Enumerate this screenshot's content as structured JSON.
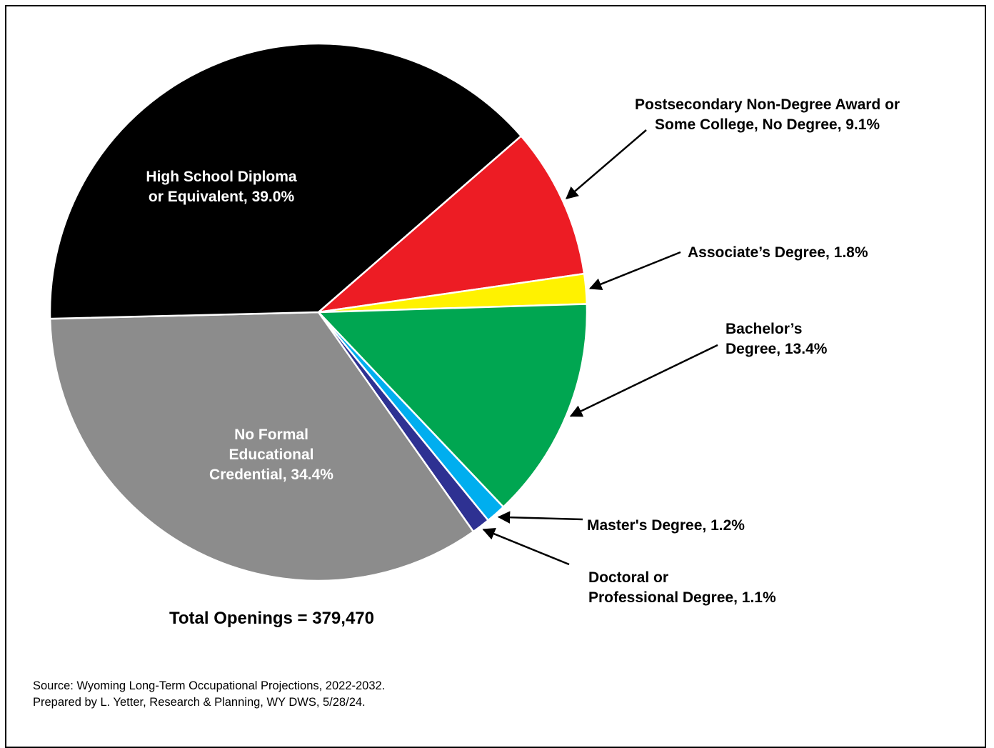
{
  "chart_data": {
    "type": "pie",
    "total_label": "Total Openings = 379,470",
    "slices": [
      {
        "label": "Postsecondary Non-Degree Award or\nSome College, No Degree, 9.1%",
        "value": 9.1,
        "color": "#ED1C24"
      },
      {
        "label": "Associate’s Degree, 1.8%",
        "value": 1.8,
        "color": "#FFF200"
      },
      {
        "label": "Bachelor’s\nDegree, 13.4%",
        "value": 13.4,
        "color": "#00A651"
      },
      {
        "label": "Master's Degree, 1.2%",
        "value": 1.2,
        "color": "#00AEEF"
      },
      {
        "label": "Doctoral or\nProfessional Degree, 1.1%",
        "value": 1.1,
        "color": "#2E3192"
      },
      {
        "label": "No Formal\nEducational\nCredential, 34.4%",
        "value": 34.4,
        "color": "#8C8C8C"
      },
      {
        "label": "High School Diploma\nor Equivalent, 39.0%",
        "value": 39.0,
        "color": "#000000"
      }
    ]
  },
  "source": {
    "line1": "Source: Wyoming Long-Term Occupational Projections, 2022-2032.",
    "line2": "Prepared by L. Yetter, Research & Planning, WY DWS, 5/28/24."
  }
}
